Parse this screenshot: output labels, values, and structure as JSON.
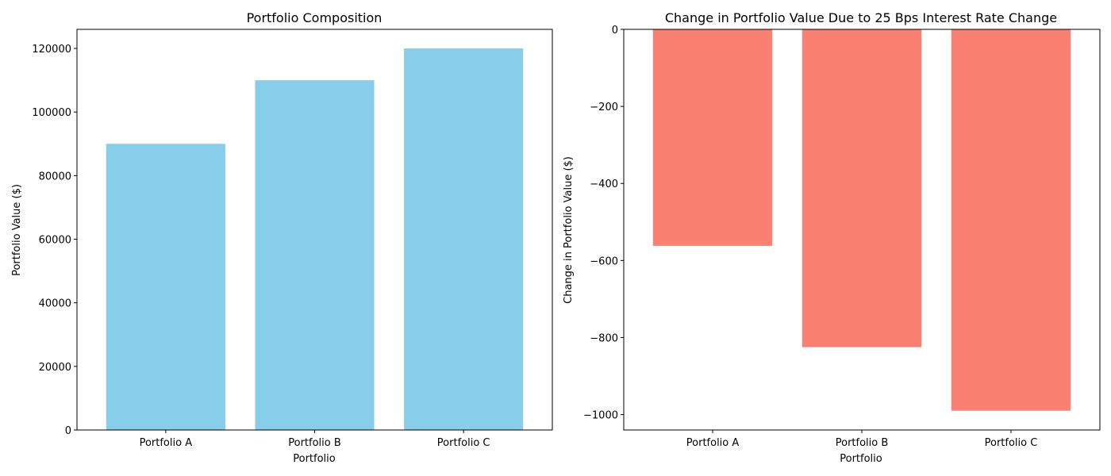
{
  "chart_data": [
    {
      "type": "bar",
      "title": "Portfolio Composition",
      "xlabel": "Portfolio",
      "ylabel": "Portfolio Value ($)",
      "categories": [
        "Portfolio A",
        "Portfolio B",
        "Portfolio C"
      ],
      "values": [
        90000,
        110000,
        120000
      ],
      "ylim": [
        0,
        126000
      ],
      "yticks": [
        0,
        20000,
        40000,
        60000,
        80000,
        100000,
        120000
      ],
      "ytick_labels": [
        "0",
        "20000",
        "40000",
        "60000",
        "80000",
        "100000",
        "120000"
      ],
      "bar_color": "#87ceeb",
      "grid": false,
      "legend": "none"
    },
    {
      "type": "bar",
      "title": "Change in Portfolio Value Due to 25 Bps Interest Rate Change",
      "xlabel": "Portfolio",
      "ylabel": "Change in Portfolio Value ($)",
      "categories": [
        "Portfolio A",
        "Portfolio B",
        "Portfolio C"
      ],
      "values": [
        -562,
        -825,
        -990
      ],
      "ylim": [
        -1040,
        0
      ],
      "yticks": [
        0,
        -200,
        -400,
        -600,
        -800,
        -1000
      ],
      "ytick_labels": [
        "0",
        "−200",
        "−400",
        "−600",
        "−800",
        "−1000"
      ],
      "bar_color": "#fa8072",
      "grid": false,
      "legend": "none"
    }
  ]
}
